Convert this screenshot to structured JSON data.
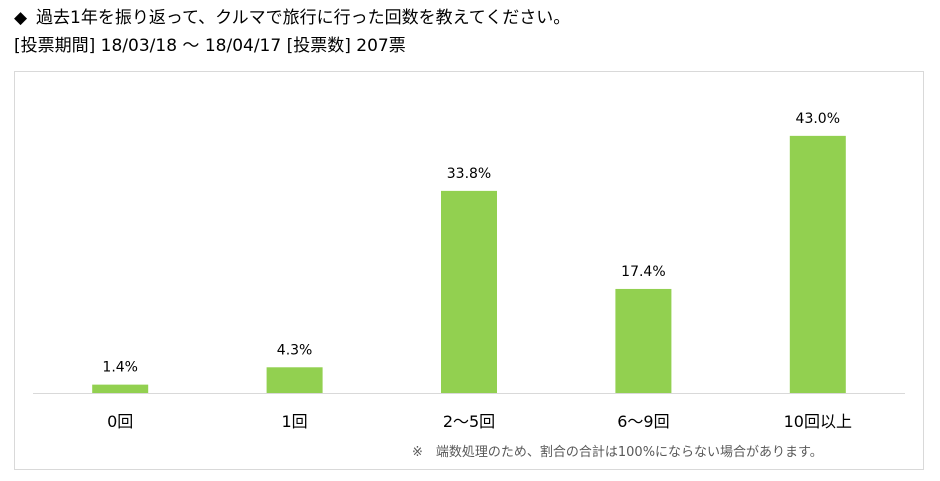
{
  "header": {
    "bullet": "◆",
    "question": "過去1年を振り返って、クルマで旅行に行った回数を教えてください。",
    "period_label": "[投票期間]",
    "period_value": "18/03/18 〜 18/04/17",
    "votes_label": "[投票数]",
    "votes_value": "207票"
  },
  "footnote": "※　端数処理のため、割合の合計は100%にならない場合があります。",
  "colors": {
    "bar": "#92d050",
    "axis": "#d9d9d9",
    "text": "#000000",
    "note": "#595959"
  },
  "chart_data": {
    "type": "bar",
    "categories": [
      "0回",
      "1回",
      "2〜5回",
      "6〜9回",
      "10回以上"
    ],
    "values": [
      1.4,
      4.3,
      33.8,
      17.4,
      43.0
    ],
    "data_labels": [
      "1.4%",
      "4.3%",
      "33.8%",
      "17.4%",
      "43.0%"
    ],
    "unit": "%",
    "title": "",
    "xlabel": "",
    "ylabel": "",
    "ylim": [
      0,
      50
    ],
    "grid": false,
    "legend": "none"
  }
}
